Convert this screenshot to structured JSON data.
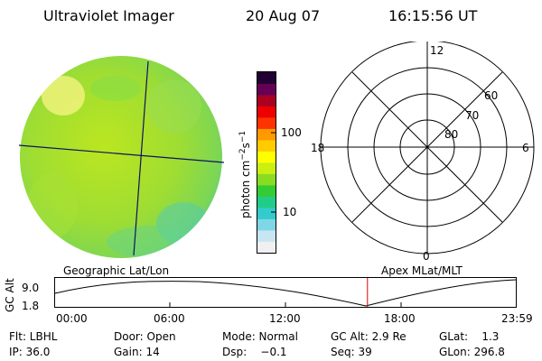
{
  "header": {
    "title": "Ultraviolet Imager",
    "date": "20 Aug 07",
    "time": "16:15:56 UT"
  },
  "colorbar": {
    "unit_label": "photon cm",
    "unit_exp1": "−2",
    "unit_s": "s",
    "unit_exp2": "−1",
    "ticks": [
      "100",
      "10"
    ],
    "colors": [
      "#f0f0f0",
      "#c8e6f2",
      "#7fd6e6",
      "#33cccc",
      "#22cc88",
      "#33cc33",
      "#88dd22",
      "#ccee11",
      "#ffff00",
      "#ffcc00",
      "#ff9900",
      "#ff3300",
      "#ee0000",
      "#aa0022",
      "#660055",
      "#220033"
    ]
  },
  "polar": {
    "mlt_labels": [
      "12",
      "18",
      "6",
      "0"
    ],
    "lat_labels": [
      "60",
      "70",
      "80"
    ]
  },
  "timeline": {
    "left_label": "Geographic Lat/Lon",
    "right_label": "Apex MLat/MLT",
    "y_axis_label": "GC Alt",
    "y_ticks": [
      "9.0",
      "1.8"
    ],
    "time_ticks": [
      "00:00",
      "06:00",
      "12:00",
      "18:00",
      "23:59"
    ],
    "current_time_fraction": 0.678
  },
  "info": {
    "flt": "Flt: LBHL",
    "ip": "IP: 36.0",
    "door": "Door: Open",
    "gain": "Gain: 14",
    "mode": "Mode: Normal",
    "dsp": "Dsp:    −0.1",
    "gc_alt": "GC Alt: 2.9 Re",
    "seq": "Seq: 39",
    "glat": "GLat:    1.3",
    "glon": "GLon: 296.8"
  }
}
